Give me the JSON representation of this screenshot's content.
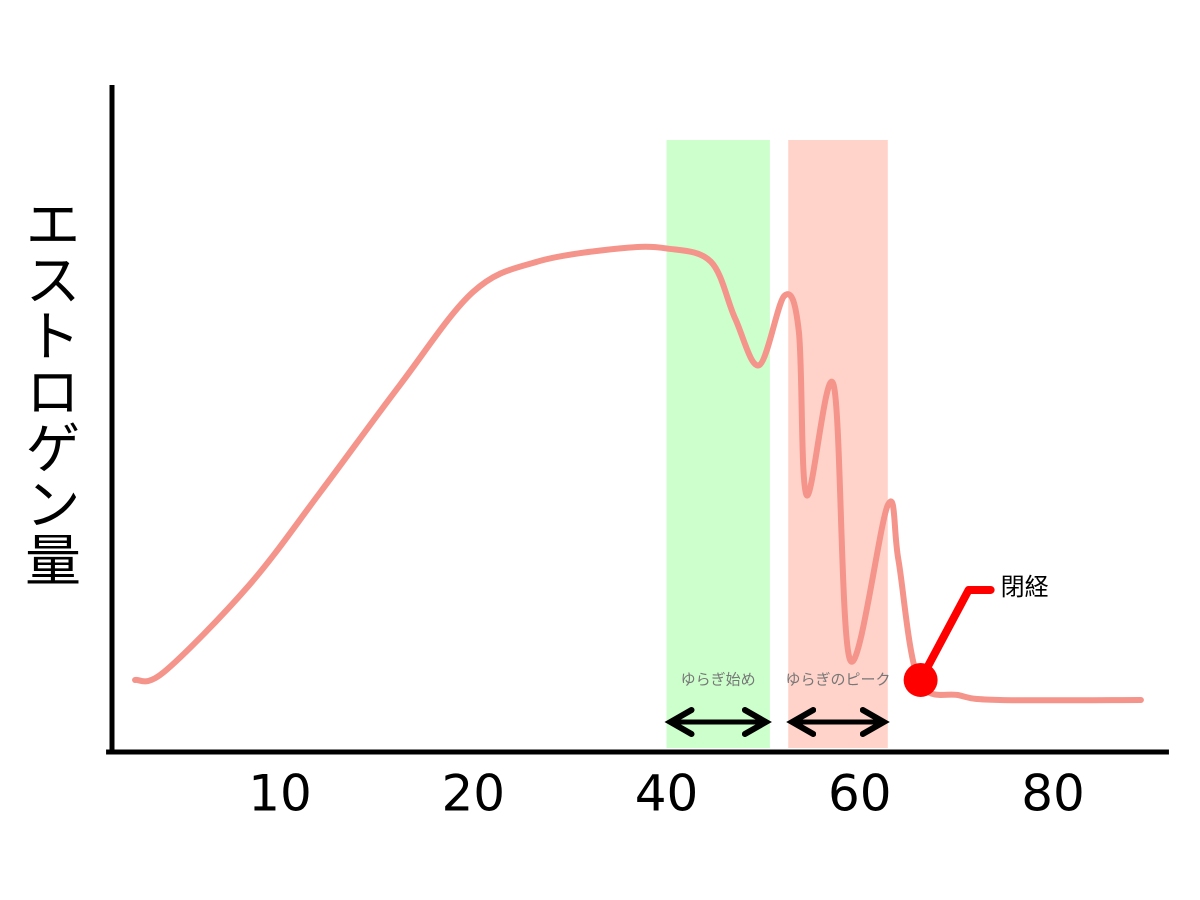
{
  "chart_data": {
    "type": "line",
    "y_label": "エストロゲン量",
    "xlim": [
      1,
      92
    ],
    "xticks": [
      10,
      20,
      40,
      60,
      80
    ],
    "ylim": [
      0,
      100
    ],
    "color": "#f4948a",
    "x": [
      2.5,
      4.0,
      8.4,
      12.1,
      16.2,
      20,
      26.6,
      35.2,
      40,
      44.6,
      47.1,
      49.6,
      52.2,
      53.7,
      54.5,
      57.3,
      59,
      62.9,
      64,
      66.1,
      70.3,
      74.5,
      89.1
    ],
    "values": [
      10.8,
      12,
      25,
      39,
      55,
      69,
      73.5,
      75.5,
      75.5,
      73.5,
      65,
      58,
      68.4,
      63,
      38.5,
      55,
      13.8,
      37,
      28.8,
      10.8,
      8.5,
      7.8,
      7.8
    ],
    "bands": [
      {
        "label": "ゆらぎ始め",
        "range": [
          40,
          50.7
        ],
        "color": "#ccffcc"
      },
      {
        "label": "ゆらぎのピーク",
        "range": [
          52.6,
          62.9
        ],
        "color": "#ffd3c9"
      }
    ],
    "annotation": {
      "label": "閉経",
      "x": 66.3,
      "y": 10.8,
      "color": "#ff0000"
    }
  }
}
